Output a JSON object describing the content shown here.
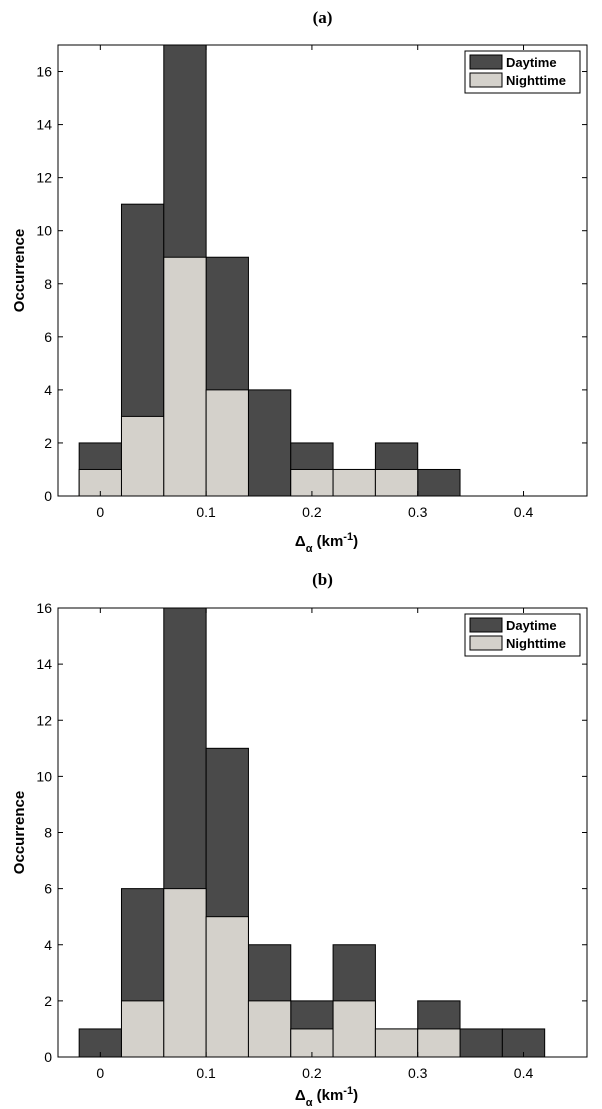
{
  "colors": {
    "daytime": "#4a4a4a",
    "nighttime": "#d4d1cb",
    "edge": "#000000"
  },
  "chart_data": [
    {
      "type": "bar",
      "panel_label": "(a)",
      "title": "",
      "xlabel_main": "Δ",
      "xlabel_sub": "α",
      "xlabel_unit": " (km",
      "xlabel_exp": "-1",
      "xlabel_close": ")",
      "ylabel": "Occurrence",
      "xlim": [
        -0.04,
        0.46
      ],
      "ylim": [
        0,
        17
      ],
      "xticks": [
        0,
        0.1,
        0.2,
        0.3,
        0.4
      ],
      "xtick_labels": [
        "0",
        "0.1",
        "0.2",
        "0.3",
        "0.4"
      ],
      "yticks": [
        0,
        2,
        4,
        6,
        8,
        10,
        12,
        14,
        16
      ],
      "bin_width": 0.04,
      "x": [
        0.0,
        0.04,
        0.08,
        0.12,
        0.16,
        0.2,
        0.24,
        0.28,
        0.32
      ],
      "series": [
        {
          "name": "Daytime",
          "values": [
            2,
            11,
            17,
            9,
            4,
            2,
            1,
            2,
            1
          ]
        },
        {
          "name": "Nighttime",
          "values": [
            1,
            3,
            9,
            4,
            0,
            1,
            1,
            1,
            0
          ]
        }
      ],
      "legend": {
        "position": "top-right",
        "entries": [
          "Daytime",
          "Nighttime"
        ]
      },
      "grid": false
    },
    {
      "type": "bar",
      "panel_label": "(b)",
      "title": "",
      "xlabel_main": "Δ",
      "xlabel_sub": "α",
      "xlabel_unit": " (km",
      "xlabel_exp": "-1",
      "xlabel_close": ")",
      "ylabel": "Occurrence",
      "xlim": [
        -0.04,
        0.46
      ],
      "ylim": [
        0,
        16
      ],
      "xticks": [
        0,
        0.1,
        0.2,
        0.3,
        0.4
      ],
      "xtick_labels": [
        "0",
        "0.1",
        "0.2",
        "0.3",
        "0.4"
      ],
      "yticks": [
        0,
        2,
        4,
        6,
        8,
        10,
        12,
        14,
        16
      ],
      "bin_width": 0.04,
      "x": [
        0.0,
        0.04,
        0.08,
        0.12,
        0.16,
        0.2,
        0.24,
        0.28,
        0.32,
        0.36,
        0.4
      ],
      "series": [
        {
          "name": "Daytime",
          "values": [
            1,
            6,
            16,
            11,
            4,
            2,
            4,
            1,
            2,
            1,
            1
          ]
        },
        {
          "name": "Nighttime",
          "values": [
            0,
            2,
            6,
            5,
            2,
            1,
            2,
            1,
            1,
            0,
            0
          ]
        }
      ],
      "legend": {
        "position": "top-right",
        "entries": [
          "Daytime",
          "Nighttime"
        ]
      },
      "grid": false
    }
  ]
}
